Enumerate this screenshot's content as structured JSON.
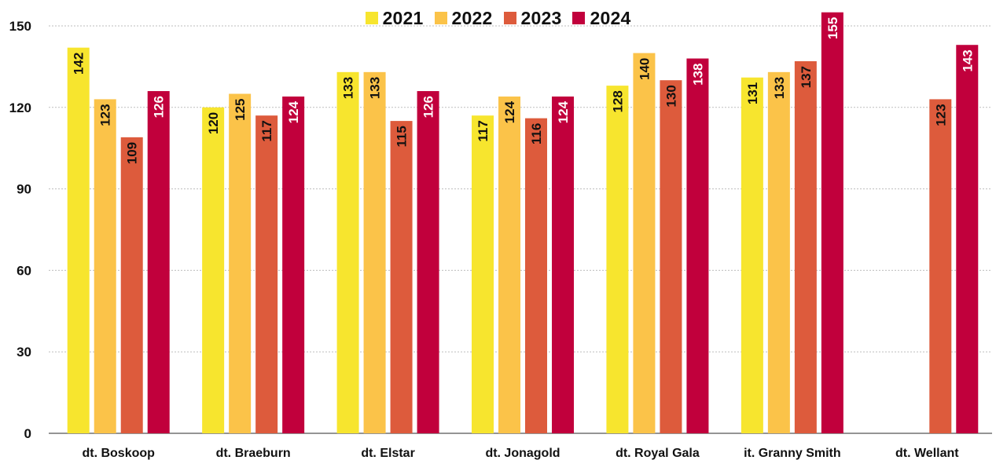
{
  "chart_data": {
    "type": "bar",
    "categories": [
      "dt. Boskoop",
      "dt. Braeburn",
      "dt. Elstar",
      "dt. Jonagold",
      "dt. Royal Gala",
      "it. Granny Smith",
      "dt. Wellant"
    ],
    "series": [
      {
        "name": "2021",
        "color": "#f7e52e",
        "label_color": "#111111",
        "values": [
          142,
          120,
          133,
          117,
          128,
          131,
          null
        ]
      },
      {
        "name": "2022",
        "color": "#fbc349",
        "label_color": "#111111",
        "values": [
          123,
          125,
          133,
          124,
          140,
          133,
          null
        ]
      },
      {
        "name": "2023",
        "color": "#dd5b3c",
        "label_color": "#111111",
        "values": [
          109,
          117,
          115,
          116,
          130,
          137,
          123
        ]
      },
      {
        "name": "2024",
        "color": "#c1003c",
        "label_color": "#ffffff",
        "values": [
          126,
          124,
          126,
          124,
          138,
          155,
          143
        ]
      }
    ],
    "ylim": [
      0,
      150
    ],
    "yticks": [
      0,
      30,
      60,
      90,
      120,
      150
    ],
    "grid": true,
    "legend_position": "top-center",
    "title": "",
    "xlabel": "",
    "ylabel": ""
  }
}
